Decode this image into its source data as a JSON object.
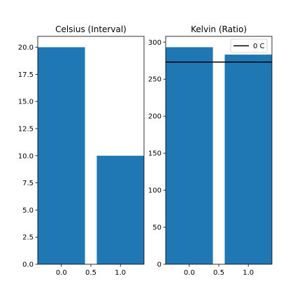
{
  "chart_data": [
    {
      "type": "bar",
      "title": "Celsius (Interval)",
      "x": [
        0.0,
        1.0
      ],
      "values": [
        20,
        10
      ],
      "bar_width": 0.8,
      "xlim": [
        -0.4,
        1.4
      ],
      "ylim": [
        0,
        21
      ],
      "xticks": [
        0.0,
        0.5,
        1.0
      ],
      "xtick_labels": [
        "0.0",
        "0.5",
        "1.0"
      ],
      "yticks": [
        0.0,
        2.5,
        5.0,
        7.5,
        10.0,
        12.5,
        15.0,
        17.5,
        20.0
      ],
      "ytick_labels": [
        "0.0",
        "2.5",
        "5.0",
        "7.5",
        "10.0",
        "12.5",
        "15.0",
        "17.5",
        "20.0"
      ],
      "bar_color": "#1f77b4",
      "grid": false
    },
    {
      "type": "bar",
      "title": "Kelvin (Ratio)",
      "x": [
        0.0,
        1.0
      ],
      "values": [
        293.15,
        283.15
      ],
      "bar_width": 0.8,
      "xlim": [
        -0.4,
        1.4
      ],
      "ylim": [
        0,
        307.8
      ],
      "xticks": [
        0.0,
        0.5,
        1.0
      ],
      "xtick_labels": [
        "0.0",
        "0.5",
        "1.0"
      ],
      "yticks": [
        0,
        50,
        100,
        150,
        200,
        250,
        300
      ],
      "ytick_labels": [
        "0",
        "50",
        "100",
        "150",
        "200",
        "250",
        "300"
      ],
      "bar_color": "#1f77b4",
      "hline": {
        "y": 273.15,
        "label": "0 C",
        "color": "#000000"
      },
      "legend": {
        "placement": "top-right",
        "entries": [
          "0 C"
        ]
      },
      "grid": false
    }
  ]
}
